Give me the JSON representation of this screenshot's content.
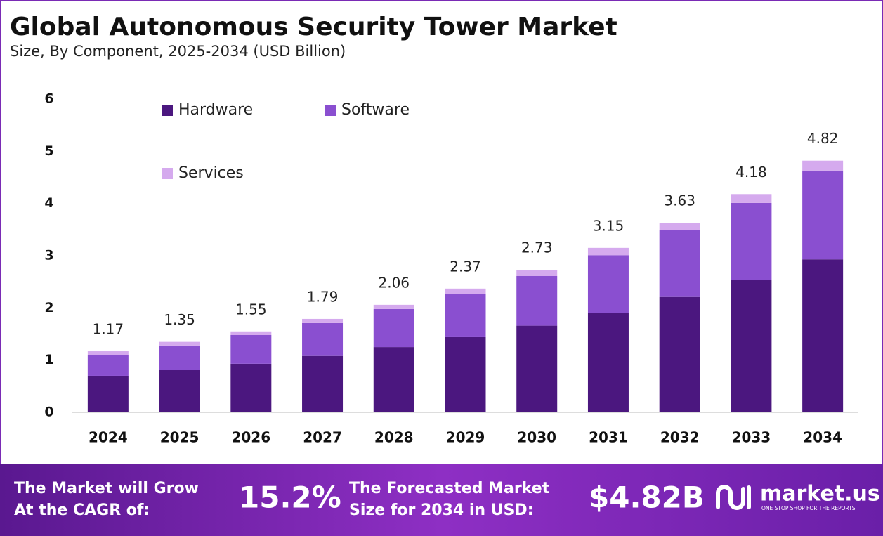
{
  "chart_data": {
    "type": "stacked-bar",
    "title": "Global Autonomous Security Tower Market",
    "subtitle": "Size, By Component, 2025-2034 (USD Billion)",
    "categories": [
      "2024",
      "2025",
      "2026",
      "2027",
      "2028",
      "2029",
      "2030",
      "2031",
      "2032",
      "2033",
      "2034"
    ],
    "series": [
      {
        "name": "Hardware",
        "color": "#4b177f",
        "values": [
          0.7,
          0.81,
          0.93,
          1.08,
          1.25,
          1.44,
          1.66,
          1.91,
          2.21,
          2.54,
          2.93
        ]
      },
      {
        "name": "Software",
        "color": "#8a4fd0",
        "values": [
          0.4,
          0.47,
          0.55,
          0.63,
          0.73,
          0.83,
          0.95,
          1.1,
          1.28,
          1.47,
          1.7
        ]
      },
      {
        "name": "Services",
        "color": "#d5aaee",
        "values": [
          0.07,
          0.07,
          0.07,
          0.08,
          0.08,
          0.1,
          0.12,
          0.14,
          0.14,
          0.17,
          0.19
        ]
      }
    ],
    "totals": [
      1.17,
      1.35,
      1.55,
      1.79,
      2.06,
      2.37,
      2.73,
      3.15,
      3.63,
      4.18,
      4.82
    ],
    "ylim": [
      0,
      6
    ],
    "yticks": [
      0,
      1,
      2,
      3,
      4,
      5,
      6
    ],
    "grid": false
  },
  "footer": {
    "cagr_text": [
      "The Market will Grow",
      "At the CAGR of:"
    ],
    "cagr_value": "15.2%",
    "forecast_text": [
      "The Forecasted Market",
      "Size for 2034 in USD:"
    ],
    "forecast_value": "$4.82B",
    "brand": "market.us",
    "tagline": "ONE STOP SHOP FOR THE REPORTS"
  }
}
